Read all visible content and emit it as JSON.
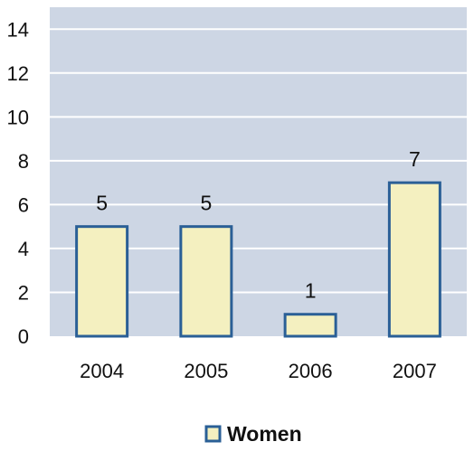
{
  "chart_data": {
    "type": "bar",
    "categories": [
      "2004",
      "2005",
      "2006",
      "2007"
    ],
    "series": [
      {
        "name": "Women",
        "values": [
          5,
          5,
          1,
          7
        ]
      }
    ],
    "data_labels": [
      "5",
      "5",
      "1",
      "7"
    ],
    "ylim": [
      0,
      15
    ],
    "yticks": [
      "0",
      "2",
      "4",
      "6",
      "8",
      "10",
      "12",
      "14"
    ],
    "ytick_values": [
      0,
      2,
      4,
      6,
      8,
      10,
      12,
      14
    ],
    "grid": true,
    "legend_position": "bottom",
    "colors": {
      "plot_background": "#cdd6e4",
      "bar_fill": "#f4f0c0",
      "bar_stroke": "#2a5f96",
      "gridline": "#ffffff"
    }
  }
}
